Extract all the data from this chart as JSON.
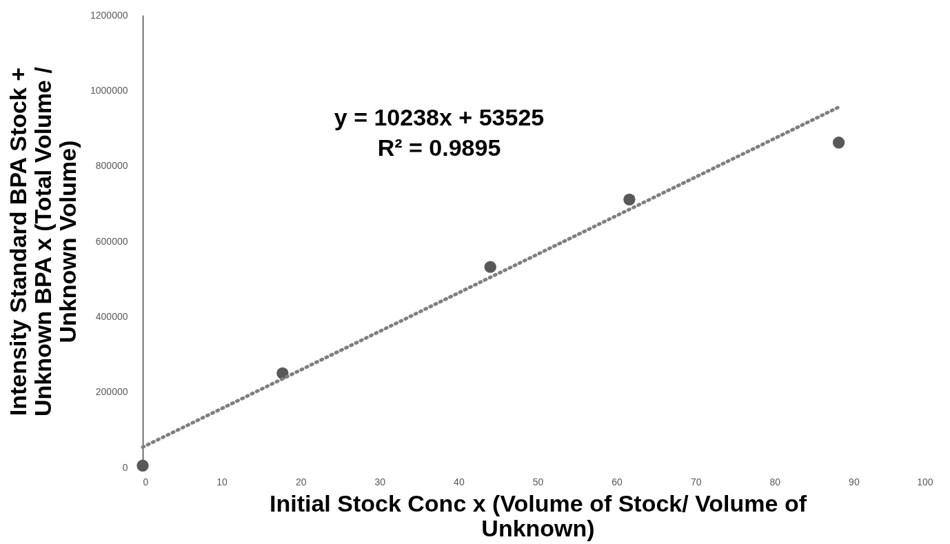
{
  "chart_data": {
    "type": "scatter",
    "xlabel": "Initial Stock Conc x (Volume of Stock/ Volume of Unknown)",
    "ylabel": "Intensity Standard BPA Stock + Unknown BPA x (Total Volume / Unknown Volume)",
    "annotations": [
      "y = 10238x + 53525\nR² = 0.9895"
    ],
    "xlim": [
      0,
      100
    ],
    "xticks": [
      0,
      10,
      20,
      30,
      40,
      50,
      60,
      70,
      80,
      90,
      100
    ],
    "ylim": [
      0,
      1200000
    ],
    "yticks": [
      0,
      200000,
      400000,
      600000,
      800000,
      1000000,
      1200000
    ],
    "grid": false,
    "legend": false,
    "series": [
      {
        "color": "#595959",
        "marker": "circle",
        "x": [
          0,
          17.7,
          44.0,
          61.6,
          88.1
        ],
        "values": [
          5000,
          250000,
          532000,
          711000,
          862000
        ]
      },
      {
        "type": "line",
        "color": "#7f7f7f",
        "line_style": "dotted",
        "marker": "none",
        "x": [
          0,
          88.1
        ],
        "values": [
          54000,
          956000
        ]
      }
    ]
  }
}
